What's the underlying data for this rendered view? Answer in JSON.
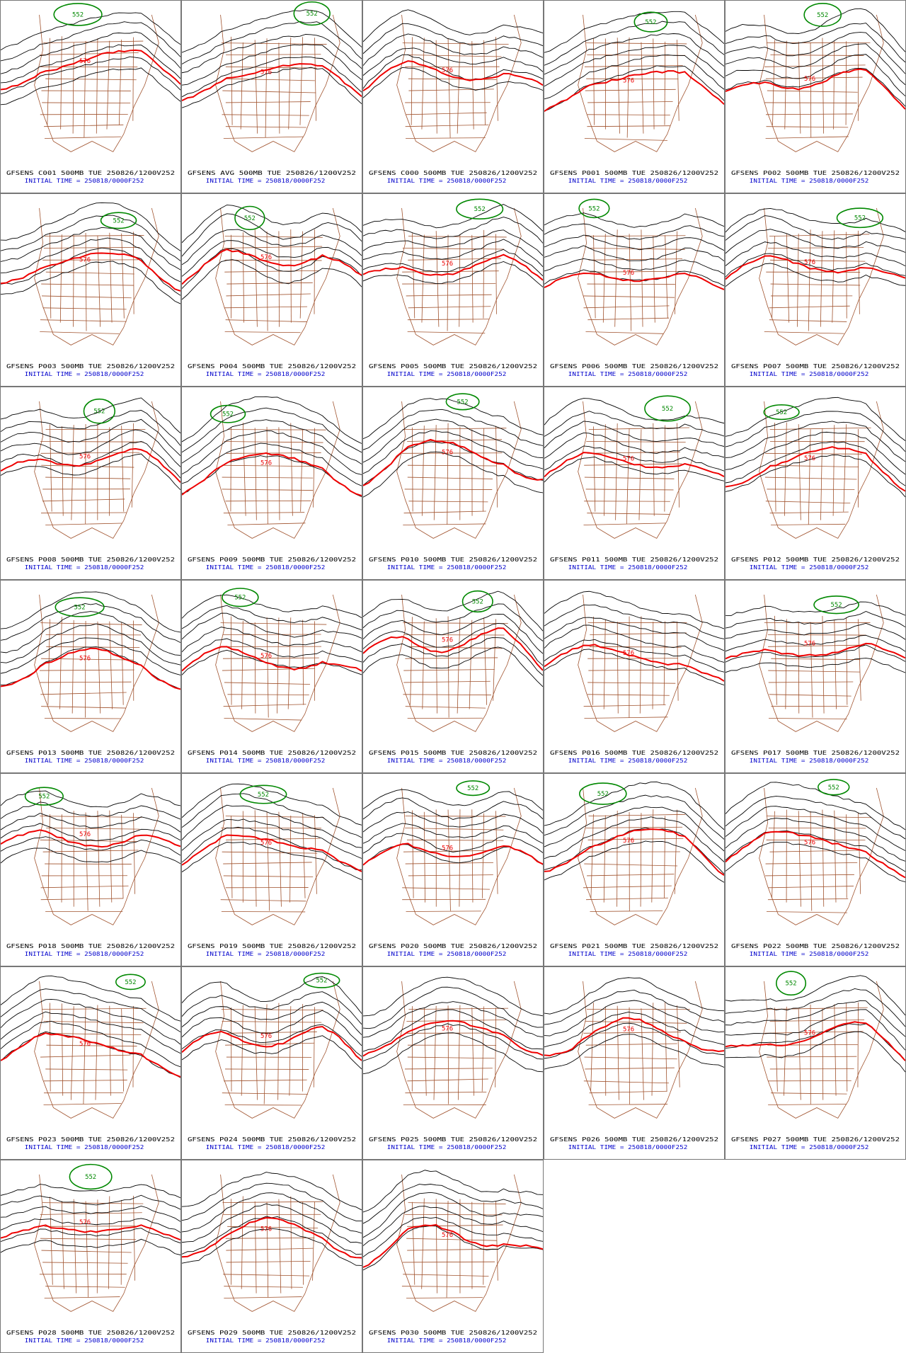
{
  "panels": [
    {
      "title": "GFSENS C001 500MB TUE 250826/1200V252",
      "init": "INITIAL TIME = 250818/0000F252",
      "contours": [
        "552",
        "576"
      ]
    },
    {
      "title": "GFSENS AVG 500MB TUE 250826/1200V252",
      "init": "INITIAL TIME = 250818/0000F252",
      "contours": [
        "552",
        "576"
      ]
    },
    {
      "title": "GFSENS C000 500MB TUE 250826/1200V252",
      "init": "INITIAL TIME = 250818/0000F252",
      "contours": [
        "576"
      ]
    },
    {
      "title": "GFSENS P001 500MB TUE 250826/1200V252",
      "init": "INITIAL TIME = 250818/0000F252",
      "contours": [
        "552",
        "576"
      ]
    },
    {
      "title": "GFSENS P002 500MB TUE 250826/1200V252",
      "init": "INITIAL TIME = 250818/0000F252",
      "contours": [
        "552",
        "576"
      ]
    },
    {
      "title": "GFSENS P003 500MB TUE 250826/1200V252",
      "init": "INITIAL TIME = 250818/0000F252",
      "contours": [
        "552",
        "576"
      ]
    },
    {
      "title": "GFSENS P004 500MB TUE 250826/1200V252",
      "init": "INITIAL TIME = 250818/0000F252",
      "contours": [
        "552",
        "576"
      ]
    },
    {
      "title": "GFSENS P005 500MB TUE 250826/1200V252",
      "init": "INITIAL TIME = 250818/0000F252",
      "contours": [
        "552",
        "576"
      ]
    },
    {
      "title": "GFSENS P006 500MB TUE 250826/1200V252",
      "init": "INITIAL TIME = 250818/0000F252",
      "contours": [
        "552",
        "576"
      ]
    },
    {
      "title": "GFSENS P007 500MB TUE 250826/1200V252",
      "init": "INITIAL TIME = 250818/0000F252",
      "contours": [
        "552",
        "576"
      ]
    },
    {
      "title": "GFSENS P008 500MB TUE 250826/1200V252",
      "init": "INITIAL TIME = 250818/0000F252",
      "contours": [
        "552",
        "576"
      ]
    },
    {
      "title": "GFSENS P009 500MB TUE 250826/1200V252",
      "init": "INITIAL TIME = 250818/0000F252",
      "contours": [
        "552",
        "576"
      ]
    },
    {
      "title": "GFSENS P010 500MB TUE 250826/1200V252",
      "init": "INITIAL TIME = 250818/0000F252",
      "contours": [
        "552",
        "576"
      ]
    },
    {
      "title": "GFSENS P011 500MB TUE 250826/1200V252",
      "init": "INITIAL TIME = 250818/0000F252",
      "contours": [
        "552",
        "576"
      ]
    },
    {
      "title": "GFSENS P012 500MB TUE 250826/1200V252",
      "init": "INITIAL TIME = 250818/0000F252",
      "contours": [
        "552",
        "576"
      ]
    },
    {
      "title": "GFSENS P013 500MB TUE 250826/1200V252",
      "init": "INITIAL TIME = 250818/0000F252",
      "contours": [
        "552",
        "576"
      ]
    },
    {
      "title": "GFSENS P014 500MB TUE 250826/1200V252",
      "init": "INITIAL TIME = 250818/0000F252",
      "contours": [
        "552",
        "576"
      ]
    },
    {
      "title": "GFSENS P015 500MB TUE 250826/1200V252",
      "init": "INITIAL TIME = 250818/0000F252",
      "contours": [
        "552",
        "576"
      ]
    },
    {
      "title": "GFSENS P016 500MB TUE 250826/1200V252",
      "init": "INITIAL TIME = 250818/0000F252",
      "contours": [
        "576"
      ]
    },
    {
      "title": "GFSENS P017 500MB TUE 250826/1200V252",
      "init": "INITIAL TIME = 250818/0000F252",
      "contours": [
        "552",
        "576"
      ]
    },
    {
      "title": "GFSENS P018 500MB TUE 250826/1200V252",
      "init": "INITIAL TIME = 250818/0000F252",
      "contours": [
        "552",
        "576"
      ]
    },
    {
      "title": "GFSENS P019 500MB TUE 250826/1200V252",
      "init": "INITIAL TIME = 250818/0000F252",
      "contours": [
        "552",
        "576"
      ]
    },
    {
      "title": "GFSENS P020 500MB TUE 250826/1200V252",
      "init": "INITIAL TIME = 250818/0000F252",
      "contours": [
        "552",
        "576"
      ]
    },
    {
      "title": "GFSENS P021 500MB TUE 250826/1200V252",
      "init": "INITIAL TIME = 250818/0000F252",
      "contours": [
        "552",
        "576"
      ]
    },
    {
      "title": "GFSENS P022 500MB TUE 250826/1200V252",
      "init": "INITIAL TIME = 250818/0000F252",
      "contours": [
        "552",
        "576"
      ]
    },
    {
      "title": "GFSENS P023 500MB TUE 250826/1200V252",
      "init": "INITIAL TIME = 250818/0000F252",
      "contours": [
        "552",
        "576"
      ]
    },
    {
      "title": "GFSENS P024 500MB TUE 250826/1200V252",
      "init": "INITIAL TIME = 250818/0000F252",
      "contours": [
        "552",
        "576"
      ]
    },
    {
      "title": "GFSENS P025 500MB TUE 250826/1200V252",
      "init": "INITIAL TIME = 250818/0000F252",
      "contours": [
        "576"
      ]
    },
    {
      "title": "GFSENS P026 500MB TUE 250826/1200V252",
      "init": "INITIAL TIME = 250818/0000F252",
      "contours": [
        "576"
      ]
    },
    {
      "title": "GFSENS P027 500MB TUE 250826/1200V252",
      "init": "INITIAL TIME = 250818/0000F252",
      "contours": [
        "552",
        "576"
      ]
    },
    {
      "title": "GFSENS P028 500MB TUE 250826/1200V252",
      "init": "INITIAL TIME = 250818/0000F252",
      "contours": [
        "552",
        "576"
      ]
    },
    {
      "title": "GFSENS P029 500MB TUE 250826/1200V252",
      "init": "INITIAL TIME = 250818/0000F252",
      "contours": [
        "576"
      ]
    },
    {
      "title": "GFSENS P030 500MB TUE 250826/1200V252",
      "init": "INITIAL TIME = 250818/0000F252",
      "contours": [
        "576"
      ]
    }
  ]
}
